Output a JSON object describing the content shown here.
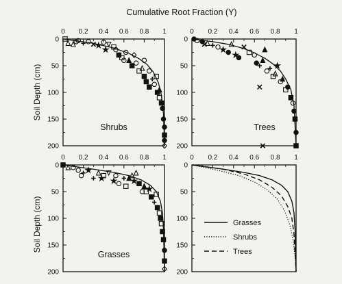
{
  "figure": {
    "title": "Cumulative Root Fraction (Y)",
    "ylabel": "Soil Depth (cm)",
    "colors": {
      "paper": "#f3f2ec",
      "ink": "#111111"
    }
  },
  "chart_data": [
    {
      "type": "scatter",
      "panel_label": "Shrubs",
      "xlim": [
        0,
        1
      ],
      "ylim": [
        0,
        200
      ],
      "y_inverted": true,
      "xticks": [
        "0",
        "0.2",
        "0.4",
        "0.6",
        "0.8",
        "1"
      ],
      "yticks": [
        "0",
        "50",
        "100",
        "150",
        "200"
      ],
      "fit": {
        "y_top": 0,
        "y_bottom": 200,
        "curve": [
          [
            0,
            0
          ],
          [
            0.3,
            8
          ],
          [
            0.5,
            17
          ],
          [
            0.65,
            27
          ],
          [
            0.75,
            37
          ],
          [
            0.83,
            48
          ],
          [
            0.89,
            62
          ],
          [
            0.94,
            82
          ],
          [
            0.97,
            105
          ],
          [
            0.99,
            140
          ],
          [
            1,
            200
          ]
        ]
      },
      "points": [
        [
          0.02,
          0,
          "square"
        ],
        [
          0.05,
          8,
          "triangle"
        ],
        [
          0.1,
          10,
          "triangle"
        ],
        [
          0.13,
          5,
          "circle"
        ],
        [
          0.15,
          3,
          "circle"
        ],
        [
          0.2,
          8,
          "cross"
        ],
        [
          0.25,
          5,
          "circle"
        ],
        [
          0.3,
          10,
          "x"
        ],
        [
          0.35,
          12,
          "star"
        ],
        [
          0.4,
          6,
          "circle"
        ],
        [
          0.42,
          20,
          "star"
        ],
        [
          0.45,
          10,
          "triangle-down"
        ],
        [
          0.5,
          15,
          "square-open"
        ],
        [
          0.52,
          20,
          "circle"
        ],
        [
          0.55,
          30,
          "square-filled"
        ],
        [
          0.58,
          35,
          "square-open"
        ],
        [
          0.6,
          40,
          "circle"
        ],
        [
          0.62,
          25,
          "circle"
        ],
        [
          0.65,
          40,
          "triangle-filled"
        ],
        [
          0.68,
          50,
          "square-filled"
        ],
        [
          0.7,
          30,
          "diamond"
        ],
        [
          0.72,
          45,
          "circle"
        ],
        [
          0.75,
          60,
          "square-open"
        ],
        [
          0.78,
          55,
          "triangle"
        ],
        [
          0.8,
          70,
          "square-filled"
        ],
        [
          0.8,
          40,
          "circle"
        ],
        [
          0.82,
          80,
          "square-filled"
        ],
        [
          0.85,
          90,
          "square-filled"
        ],
        [
          0.85,
          60,
          "circle"
        ],
        [
          0.88,
          75,
          "cross"
        ],
        [
          0.9,
          85,
          "circle"
        ],
        [
          0.92,
          70,
          "square-open"
        ],
        [
          0.93,
          100,
          "square-filled"
        ],
        [
          0.95,
          95,
          "triangle-filled"
        ],
        [
          0.95,
          110,
          "square-open"
        ],
        [
          0.97,
          120,
          "square-filled"
        ],
        [
          0.98,
          130,
          "circle-filled"
        ],
        [
          0.99,
          150,
          "circle-filled"
        ],
        [
          1,
          165,
          "circle-filled"
        ],
        [
          1,
          180,
          "square-filled"
        ],
        [
          1,
          190,
          "circle-filled"
        ],
        [
          1,
          200,
          "diamond"
        ]
      ]
    },
    {
      "type": "scatter",
      "panel_label": "Trees",
      "xlim": [
        0,
        1
      ],
      "ylim": [
        0,
        200
      ],
      "y_inverted": true,
      "xticks": [
        "0",
        "0.2",
        "0.4",
        "0.6",
        "0.8",
        "1"
      ],
      "yticks": [
        "0",
        "50",
        "100",
        "150",
        "200"
      ],
      "fit": {
        "y_top": 0,
        "y_bottom": 200,
        "curve": [
          [
            0,
            0
          ],
          [
            0.2,
            5
          ],
          [
            0.35,
            10
          ],
          [
            0.5,
            18
          ],
          [
            0.6,
            26
          ],
          [
            0.7,
            36
          ],
          [
            0.78,
            47
          ],
          [
            0.85,
            60
          ],
          [
            0.9,
            75
          ],
          [
            0.95,
            95
          ],
          [
            0.98,
            125
          ],
          [
            1,
            200
          ]
        ]
      },
      "points": [
        [
          0.02,
          0,
          "circle-filled"
        ],
        [
          0.05,
          3,
          "circle"
        ],
        [
          0.1,
          5,
          "circle-filled"
        ],
        [
          0.12,
          10,
          "x"
        ],
        [
          0.15,
          8,
          "triangle"
        ],
        [
          0.2,
          12,
          "cross"
        ],
        [
          0.25,
          15,
          "circle"
        ],
        [
          0.3,
          20,
          "star"
        ],
        [
          0.35,
          25,
          "circle-filled"
        ],
        [
          0.38,
          10,
          "triangle"
        ],
        [
          0.42,
          30,
          "star"
        ],
        [
          0.45,
          35,
          "circle-filled"
        ],
        [
          0.5,
          15,
          "x"
        ],
        [
          0.55,
          25,
          "square-open"
        ],
        [
          0.6,
          30,
          "circle"
        ],
        [
          0.62,
          45,
          "circle-filled"
        ],
        [
          0.65,
          50,
          "cross"
        ],
        [
          0.68,
          40,
          "triangle-filled"
        ],
        [
          0.7,
          20,
          "triangle-filled"
        ],
        [
          0.72,
          60,
          "circle"
        ],
        [
          0.75,
          55,
          "cross"
        ],
        [
          0.78,
          70,
          "square-open"
        ],
        [
          0.8,
          65,
          "triangle"
        ],
        [
          0.82,
          50,
          "star"
        ],
        [
          0.85,
          80,
          "circle"
        ],
        [
          0.87,
          75,
          "triangle-filled"
        ],
        [
          0.9,
          95,
          "square-open"
        ],
        [
          0.92,
          90,
          "circle-filled"
        ],
        [
          0.95,
          110,
          "square-filled"
        ],
        [
          0.97,
          120,
          "circle"
        ],
        [
          0.98,
          135,
          "circle-filled"
        ],
        [
          0.99,
          150,
          "square-filled"
        ],
        [
          1,
          175,
          "circle-filled"
        ],
        [
          1,
          200,
          "square-filled"
        ],
        [
          0.68,
          200,
          "x"
        ],
        [
          0.65,
          90,
          "x"
        ]
      ]
    },
    {
      "type": "scatter",
      "panel_label": "Grasses",
      "xlim": [
        0,
        1
      ],
      "ylim": [
        0,
        200
      ],
      "y_inverted": true,
      "xticks": [
        "0",
        "0.2",
        "0.4",
        "0.6",
        "0.8",
        "1"
      ],
      "yticks": [
        "0",
        "50",
        "100",
        "150",
        "200"
      ],
      "fit": {
        "y_top": 0,
        "y_bottom": 200,
        "curve": [
          [
            0,
            0
          ],
          [
            0.3,
            8
          ],
          [
            0.5,
            14
          ],
          [
            0.65,
            20
          ],
          [
            0.77,
            28
          ],
          [
            0.86,
            38
          ],
          [
            0.92,
            50
          ],
          [
            0.96,
            68
          ],
          [
            0.98,
            90
          ],
          [
            0.99,
            120
          ],
          [
            1,
            200
          ]
        ]
      },
      "points": [
        [
          0,
          0,
          "square-filled"
        ],
        [
          0.05,
          5,
          "triangle"
        ],
        [
          0.1,
          5,
          "circle"
        ],
        [
          0.15,
          10,
          "circle"
        ],
        [
          0.18,
          20,
          "circle"
        ],
        [
          0.2,
          15,
          "cross"
        ],
        [
          0.25,
          10,
          "star"
        ],
        [
          0.3,
          25,
          "cross"
        ],
        [
          0.35,
          15,
          "triangle"
        ],
        [
          0.38,
          25,
          "star"
        ],
        [
          0.4,
          20,
          "square-open"
        ],
        [
          0.45,
          15,
          "triangle-down"
        ],
        [
          0.5,
          30,
          "star"
        ],
        [
          0.52,
          20,
          "circle"
        ],
        [
          0.55,
          35,
          "circle"
        ],
        [
          0.6,
          25,
          "cross"
        ],
        [
          0.62,
          40,
          "square-open"
        ],
        [
          0.65,
          25,
          "triangle-filled"
        ],
        [
          0.68,
          20,
          "triangle"
        ],
        [
          0.7,
          30,
          "star"
        ],
        [
          0.72,
          15,
          "triangle"
        ],
        [
          0.75,
          35,
          "square-filled"
        ],
        [
          0.78,
          50,
          "circle"
        ],
        [
          0.8,
          40,
          "triangle-filled"
        ],
        [
          0.82,
          50,
          "square-open"
        ],
        [
          0.85,
          45,
          "star"
        ],
        [
          0.87,
          60,
          "square-filled"
        ],
        [
          0.9,
          70,
          "cross"
        ],
        [
          0.92,
          55,
          "square-open"
        ],
        [
          0.93,
          80,
          "square-filled"
        ],
        [
          0.95,
          90,
          "square-open"
        ],
        [
          0.96,
          100,
          "square-filled"
        ],
        [
          0.97,
          110,
          "square-open"
        ],
        [
          0.98,
          125,
          "square-filled"
        ],
        [
          0.99,
          140,
          "square-filled"
        ],
        [
          1,
          160,
          "circle-filled"
        ],
        [
          1,
          180,
          "square-filled"
        ],
        [
          1,
          195,
          "diamond"
        ]
      ]
    },
    {
      "type": "line",
      "xlim": [
        0,
        1
      ],
      "ylim": [
        0,
        200
      ],
      "y_inverted": true,
      "xticks": [
        "0",
        "0.2",
        "0.4",
        "0.6",
        "0.8",
        "1"
      ],
      "yticks": [
        "0",
        "50",
        "100",
        "150",
        "200"
      ],
      "series": [
        {
          "name": "Grasses",
          "style": "solid",
          "points": [
            [
              0,
              0
            ],
            [
              0.3,
              8
            ],
            [
              0.5,
              14
            ],
            [
              0.65,
              20
            ],
            [
              0.77,
              28
            ],
            [
              0.86,
              38
            ],
            [
              0.92,
              50
            ],
            [
              0.96,
              68
            ],
            [
              0.98,
              90
            ],
            [
              0.99,
              120
            ],
            [
              1,
              200
            ]
          ]
        },
        {
          "name": "Shrubs",
          "style": "dotted",
          "points": [
            [
              0,
              0
            ],
            [
              0.25,
              10
            ],
            [
              0.45,
              20
            ],
            [
              0.6,
              32
            ],
            [
              0.72,
              46
            ],
            [
              0.82,
              64
            ],
            [
              0.89,
              86
            ],
            [
              0.94,
              112
            ],
            [
              0.97,
              140
            ],
            [
              0.99,
              170
            ],
            [
              1,
              200
            ]
          ]
        },
        {
          "name": "Trees",
          "style": "dashed",
          "points": [
            [
              0,
              0
            ],
            [
              0.3,
              8
            ],
            [
              0.5,
              17
            ],
            [
              0.65,
              28
            ],
            [
              0.77,
              42
            ],
            [
              0.86,
              58
            ],
            [
              0.92,
              78
            ],
            [
              0.96,
              100
            ],
            [
              0.98,
              130
            ],
            [
              1,
              200
            ]
          ]
        }
      ],
      "legend_position": "bottom-left"
    }
  ]
}
